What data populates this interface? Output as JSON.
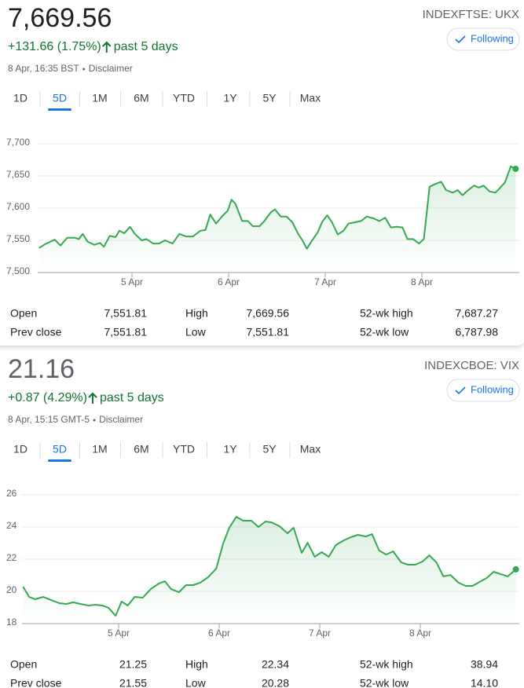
{
  "quotes": [
    {
      "price": "7,669.56",
      "symbol": "INDEXFTSE: UKX",
      "button": "Following",
      "change": "+131.66 (1.75%)",
      "period": "past 5 days",
      "timestamp": "8 Apr, 16:35 BST",
      "disclaimer": "Disclaimer",
      "ranges": [
        "1D",
        "5D",
        "1M",
        "6M",
        "YTD",
        "1Y",
        "5Y",
        "Max"
      ],
      "selected_range": "5D",
      "stats": [
        [
          "Open",
          "7,551.81",
          "High",
          "7,669.56",
          "52-wk high",
          "7,687.27"
        ],
        [
          "Prev close",
          "7,551.81",
          "Low",
          "7,551.81",
          "52-wk low",
          "6,787.98"
        ]
      ]
    },
    {
      "price": "21.16",
      "symbol": "INDEXCBOE: VIX",
      "button": "Following",
      "change": "+0.87 (4.29%)",
      "period": "past 5 days",
      "timestamp": "8 Apr, 15:15 GMT-5",
      "disclaimer": "Disclaimer",
      "ranges": [
        "1D",
        "5D",
        "1M",
        "6M",
        "YTD",
        "1Y",
        "5Y",
        "Max"
      ],
      "selected_range": "5D",
      "stats": [
        [
          "Open",
          "21.25",
          "High",
          "22.34",
          "52-wk high",
          "38.94"
        ],
        [
          "Prev close",
          "21.55",
          "Low",
          "20.28",
          "52-wk low",
          "14.10"
        ]
      ]
    }
  ],
  "chart_data": [
    {
      "type": "line",
      "color": "#34a853",
      "grid": true,
      "x": [
        0.04,
        0.1,
        0.2,
        0.26,
        0.33,
        0.41,
        0.45,
        0.49,
        0.54,
        0.61,
        0.67,
        0.71,
        0.77,
        0.83,
        0.87,
        0.92,
        0.98,
        1.03,
        1.1,
        1.15,
        1.22,
        1.28,
        1.34,
        1.42,
        1.49,
        1.56,
        1.63,
        1.71,
        1.76,
        1.81,
        1.87,
        1.93,
        1.99,
        2.03,
        2.07,
        2.14,
        2.2,
        2.25,
        2.32,
        2.37,
        2.44,
        2.48,
        2.54,
        2.6,
        2.66,
        2.72,
        2.76,
        2.81,
        2.86,
        2.92,
        2.97,
        3.02,
        3.07,
        3.13,
        3.19,
        3.24,
        3.31,
        3.37,
        3.43,
        3.5,
        3.56,
        3.62,
        3.68,
        3.74,
        3.8,
        3.85,
        3.91,
        3.97,
        4.02,
        4.08,
        4.13,
        4.2,
        4.25,
        4.32,
        4.37,
        4.42,
        4.48,
        4.54,
        4.59,
        4.64,
        4.7,
        4.76,
        4.8,
        4.86,
        4.92,
        4.97
      ],
      "values": [
        7538,
        7544,
        7551,
        7542,
        7554,
        7554,
        7552,
        7560,
        7548,
        7543,
        7546,
        7540,
        7557,
        7555,
        7565,
        7561,
        7571,
        7560,
        7550,
        7552,
        7545,
        7545,
        7550,
        7545,
        7560,
        7556,
        7556,
        7565,
        7566,
        7590,
        7576,
        7587,
        7596,
        7613,
        7607,
        7580,
        7580,
        7572,
        7572,
        7580,
        7594,
        7598,
        7587,
        7587,
        7578,
        7560,
        7551,
        7537,
        7549,
        7562,
        7579,
        7589,
        7578,
        7559,
        7565,
        7576,
        7578,
        7580,
        7587,
        7584,
        7580,
        7585,
        7570,
        7571,
        7570,
        7552,
        7552,
        7545,
        7552,
        7633,
        7637,
        7641,
        7628,
        7624,
        7628,
        7620,
        7628,
        7635,
        7632,
        7635,
        7626,
        7624,
        7630,
        7640,
        7665,
        7661
      ],
      "xlim": [
        0,
        5
      ],
      "xticks": [
        {
          "value": 1,
          "label": "5 Apr"
        },
        {
          "value": 2,
          "label": "6 Apr"
        },
        {
          "value": 3,
          "label": "7 Apr"
        },
        {
          "value": 4,
          "label": "8 Apr"
        }
      ],
      "ylim": [
        7500,
        7700
      ],
      "yticks": [
        {
          "value": 7500,
          "label": "7,500"
        },
        {
          "value": 7550,
          "label": "7,550"
        },
        {
          "value": 7600,
          "label": "7,600"
        },
        {
          "value": 7650,
          "label": "7,650"
        },
        {
          "value": 7700,
          "label": "7,700"
        }
      ]
    },
    {
      "type": "line",
      "color": "#34a853",
      "grid": true,
      "x": [
        0.05,
        0.11,
        0.17,
        0.25,
        0.33,
        0.41,
        0.48,
        0.55,
        0.62,
        0.7,
        0.77,
        0.84,
        0.9,
        0.97,
        1.03,
        1.09,
        1.16,
        1.24,
        1.32,
        1.4,
        1.46,
        1.52,
        1.6,
        1.67,
        1.74,
        1.81,
        1.89,
        1.97,
        2.04,
        2.1,
        2.17,
        2.24,
        2.32,
        2.39,
        2.46,
        2.52,
        2.6,
        2.68,
        2.74,
        2.82,
        2.88,
        2.95,
        3.02,
        3.09,
        3.16,
        3.24,
        3.31,
        3.38,
        3.46,
        3.52,
        3.59,
        3.66,
        3.73,
        3.81,
        3.88,
        3.95,
        4.02,
        4.09,
        4.16,
        4.23,
        4.3,
        4.38,
        4.45,
        4.52,
        4.59,
        4.66,
        4.73,
        4.8,
        4.87,
        4.95
      ],
      "values": [
        20.29,
        19.66,
        19.51,
        19.66,
        19.46,
        19.27,
        19.22,
        19.32,
        19.22,
        19.12,
        19.17,
        19.12,
        18.98,
        18.49,
        19.37,
        19.12,
        19.66,
        19.61,
        20.15,
        20.49,
        20.63,
        20.15,
        19.95,
        20.39,
        20.39,
        20.54,
        20.88,
        21.41,
        22.98,
        23.95,
        24.63,
        24.39,
        24.39,
        24.0,
        24.34,
        24.29,
        24.05,
        23.61,
        23.95,
        22.39,
        23.02,
        22.15,
        22.44,
        22.15,
        22.88,
        23.17,
        23.37,
        23.51,
        23.41,
        23.56,
        22.54,
        22.29,
        22.49,
        21.8,
        21.66,
        21.66,
        21.85,
        22.24,
        21.8,
        20.93,
        21.02,
        20.54,
        20.34,
        20.34,
        20.59,
        20.83,
        21.22,
        21.07,
        20.93,
        21.37
      ],
      "xlim": [
        0,
        5
      ],
      "xticks": [
        {
          "value": 1,
          "label": "5 Apr"
        },
        {
          "value": 2,
          "label": "6 Apr"
        },
        {
          "value": 3,
          "label": "7 Apr"
        },
        {
          "value": 4,
          "label": "8 Apr"
        }
      ],
      "ylim": [
        18,
        26
      ],
      "yticks": [
        18,
        20,
        22,
        24,
        26
      ]
    }
  ]
}
